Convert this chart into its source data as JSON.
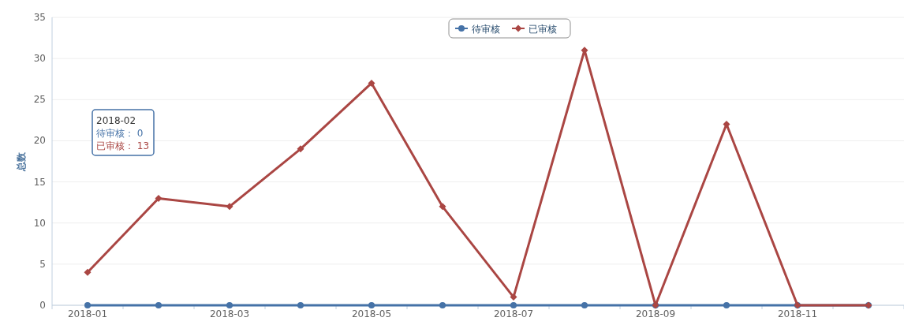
{
  "chart_data": {
    "type": "line",
    "ylabel": "总数",
    "categories": [
      "2018-01",
      null,
      "2018-03",
      null,
      "2018-05",
      null,
      "2018-07",
      null,
      "2018-09",
      null,
      "2018-11",
      null
    ],
    "series": [
      {
        "name": "待审核",
        "color": "#4572a7",
        "marker": "circle",
        "values": [
          0,
          0,
          0,
          0,
          0,
          0,
          0,
          0,
          0,
          0,
          0,
          0
        ]
      },
      {
        "name": "已审核",
        "color": "#aa4643",
        "marker": "diamond",
        "values": [
          4,
          13,
          12,
          19,
          27,
          12,
          1,
          31,
          0,
          22,
          0,
          0
        ]
      }
    ],
    "ylim": [
      0,
      35
    ],
    "yticks": [
      0,
      5,
      10,
      15,
      20,
      25,
      30,
      35
    ],
    "grid": "y",
    "legend": "top",
    "annotations": [
      "2018-02\n待审核： 0\n已审核： 13"
    ]
  }
}
